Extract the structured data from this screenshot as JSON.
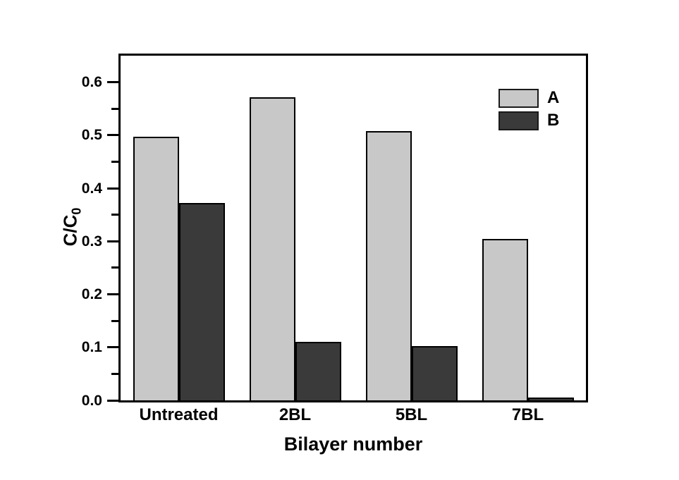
{
  "chart_data": {
    "type": "bar",
    "title": "",
    "xlabel": "Bilayer number",
    "ylabel": "C/C0",
    "ylabel_main": "C/C",
    "ylabel_sub": "0",
    "categories": [
      "Untreated",
      "2BL",
      "5BL",
      "7BL"
    ],
    "series": [
      {
        "name": "A",
        "color": "#c8c8c8",
        "values": [
          0.497,
          0.571,
          0.508,
          0.305
        ]
      },
      {
        "name": "B",
        "color": "#3a3a3a",
        "values": [
          0.372,
          0.111,
          0.102,
          0.005
        ]
      }
    ],
    "ylim": [
      0,
      0.65
    ],
    "yticks": [
      0.0,
      0.1,
      0.2,
      0.3,
      0.4,
      0.5,
      0.6
    ],
    "ytick_labels": [
      "0.0",
      "0.1",
      "0.2",
      "0.3",
      "0.4",
      "0.5",
      "0.6"
    ],
    "minor_tick_step": 0.05,
    "grid": false,
    "legend_position": "top-right",
    "bar_outline_color": "#000000",
    "axis_color": "#000000",
    "background_color": "#ffffff"
  }
}
